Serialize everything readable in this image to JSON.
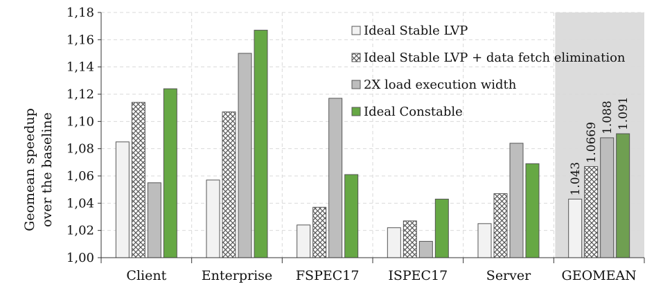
{
  "chart_data": {
    "type": "bar",
    "ylabel_lines": [
      "Geomean speedup",
      "over the baseline"
    ],
    "ylim": [
      1.0,
      1.18
    ],
    "yticks": [
      "1,00",
      "1,02",
      "1,04",
      "1,06",
      "1,08",
      "1,10",
      "1,12",
      "1,14",
      "1,16",
      "1,18"
    ],
    "categories": [
      "Client",
      "Enterprise",
      "FSPEC17",
      "ISPEC17",
      "Server",
      "GEOMEAN"
    ],
    "highlighted_category": "GEOMEAN",
    "grid": true,
    "legend_position": "top-right",
    "series": [
      {
        "name": "Ideal Stable LVP",
        "pattern": "light",
        "values": [
          1.085,
          1.057,
          1.024,
          1.022,
          1.025,
          1.043
        ]
      },
      {
        "name": "Ideal Stable LVP + data fetch elimination",
        "pattern": "hatch",
        "values": [
          1.114,
          1.107,
          1.037,
          1.027,
          1.047,
          1.0669
        ]
      },
      {
        "name": "2X load execution width",
        "pattern": "gray",
        "values": [
          1.055,
          1.15,
          1.117,
          1.012,
          1.084,
          1.088
        ]
      },
      {
        "name": "Ideal Constable",
        "pattern": "green",
        "values": [
          1.124,
          1.167,
          1.061,
          1.043,
          1.069,
          1.091
        ]
      }
    ],
    "data_labels": {
      "category": "GEOMEAN",
      "labels": [
        "1.043",
        "1.0669",
        "1.088",
        "1.091"
      ]
    }
  },
  "colors": {
    "light": "#f2f2f2",
    "gray": "#bdbdbd",
    "green": "#66a844",
    "green_shaded": "#6f9f51",
    "highlight_bg": "#dcdcdc",
    "grid": "#d9d9d9",
    "border": "#555555"
  }
}
